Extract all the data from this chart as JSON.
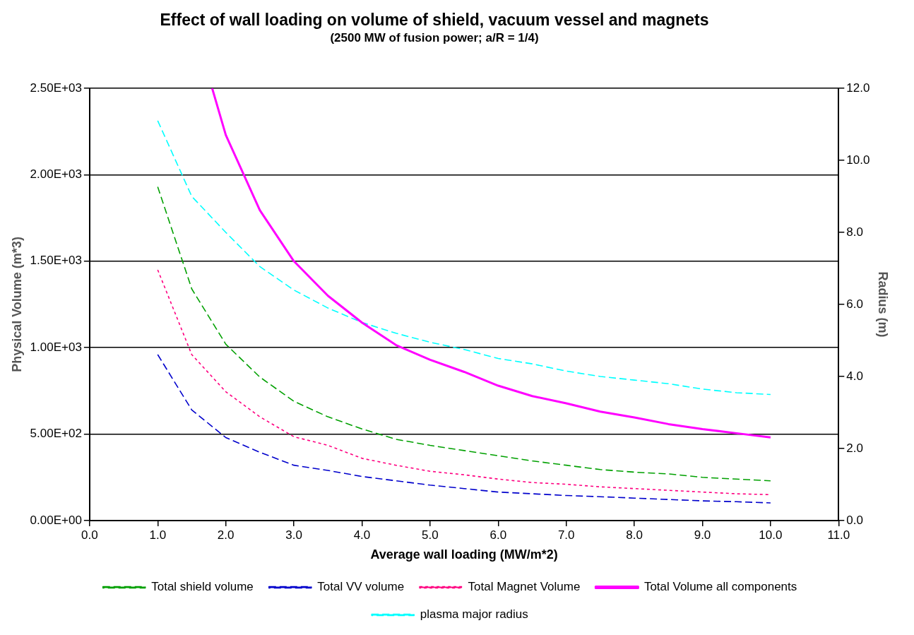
{
  "chart_data": {
    "type": "line",
    "title": "Effect of wall loading on volume of shield, vacuum vessel and magnets",
    "subtitle": "(2500 MW of fusion power; a/R = 1/4)",
    "xlabel": "Average wall loading (MW/m*2)",
    "ylabel": "Physical Volume (m*3)",
    "y2label": "Radius (m)",
    "x": [
      1,
      1.5,
      2,
      2.5,
      3,
      3.5,
      4,
      4.5,
      5,
      5.5,
      6,
      6.5,
      7,
      7.5,
      8,
      8.5,
      9,
      9.5,
      10
    ],
    "series": [
      {
        "name": "Total shield volume",
        "color": "#00a000",
        "line_style": "dashed",
        "values": [
          1930,
          1340,
          1020,
          830,
          690,
          600,
          530,
          470,
          435,
          405,
          375,
          345,
          320,
          295,
          280,
          270,
          250,
          240,
          230
        ]
      },
      {
        "name": "Total VV volume",
        "color": "#0000cc",
        "line_style": "dashed",
        "values": [
          960,
          640,
          480,
          395,
          320,
          290,
          255,
          230,
          205,
          185,
          165,
          155,
          145,
          138,
          130,
          122,
          114,
          109,
          102
        ]
      },
      {
        "name": "Total Magnet Volume",
        "color": "#ff0080",
        "line_style": "dotted",
        "values": [
          1450,
          960,
          745,
          600,
          485,
          435,
          360,
          320,
          285,
          265,
          240,
          220,
          210,
          195,
          185,
          175,
          165,
          155,
          150
        ]
      },
      {
        "name": "Total Volume all components",
        "color": "#ff00ff",
        "line_style": "solid",
        "x": [
          1.8,
          2,
          2.5,
          3,
          3.5,
          4,
          4.5,
          5,
          5.5,
          6,
          6.5,
          7,
          7.5,
          8,
          8.5,
          9,
          9.5,
          10
        ],
        "values": [
          2500,
          2230,
          1795,
          1500,
          1300,
          1145,
          1015,
          930,
          860,
          780,
          720,
          678,
          630,
          596,
          558,
          529,
          505,
          481
        ]
      },
      {
        "name": "plasma major radius",
        "color": "#00ffff",
        "line_style": "dashed",
        "axis": "y2",
        "values": [
          11.1,
          9.0,
          8.0,
          7.05,
          6.4,
          5.9,
          5.5,
          5.2,
          4.95,
          4.75,
          4.5,
          4.35,
          4.15,
          4.0,
          3.9,
          3.8,
          3.65,
          3.55,
          3.5
        ]
      }
    ],
    "xlim": [
      0,
      11
    ],
    "xticks": [
      {
        "value": 0,
        "label": "0.0"
      },
      {
        "value": 1,
        "label": "1.0"
      },
      {
        "value": 2,
        "label": "2.0"
      },
      {
        "value": 3,
        "label": "3.0"
      },
      {
        "value": 4,
        "label": "4.0"
      },
      {
        "value": 5,
        "label": "5.0"
      },
      {
        "value": 6,
        "label": "6.0"
      },
      {
        "value": 7,
        "label": "7.0"
      },
      {
        "value": 8,
        "label": "8.0"
      },
      {
        "value": 9,
        "label": "9.0"
      },
      {
        "value": 10,
        "label": "10.0"
      },
      {
        "value": 11,
        "label": "11.0"
      }
    ],
    "ylim": [
      0,
      2500
    ],
    "yticks": [
      {
        "value": 0,
        "label": "0.00E+00"
      },
      {
        "value": 500,
        "label": "5.00E+02"
      },
      {
        "value": 1000,
        "label": "1.00E+03"
      },
      {
        "value": 1500,
        "label": "1.50E+03"
      },
      {
        "value": 2000,
        "label": "2.00E+03"
      },
      {
        "value": 2500,
        "label": "2.50E+03"
      }
    ],
    "y2lim": [
      0,
      12
    ],
    "y2ticks": [
      {
        "value": 0,
        "label": "0.0"
      },
      {
        "value": 2,
        "label": "2.0"
      },
      {
        "value": 4,
        "label": "4.0"
      },
      {
        "value": 6,
        "label": "6.0"
      },
      {
        "value": 8,
        "label": "8.0"
      },
      {
        "value": 10,
        "label": "10.0"
      },
      {
        "value": 12,
        "label": "12.0"
      }
    ],
    "grid": "y",
    "legend": "bottom",
    "marker": "none"
  }
}
